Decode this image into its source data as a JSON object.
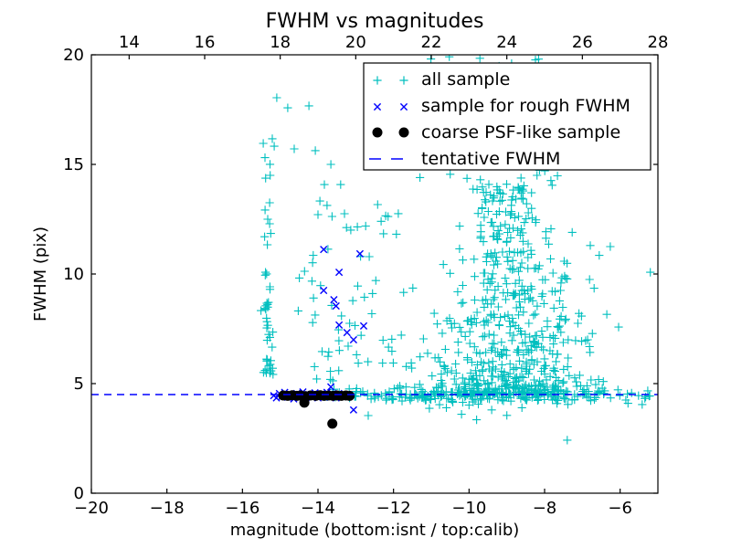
{
  "figure": {
    "background": "#ffffff"
  },
  "chart_data": {
    "type": "scatter",
    "title": "FWHM vs magnitudes",
    "xlabel": "magnitude (bottom:isnt / top:calib)",
    "ylabel": "FWHM (pix)",
    "xlim": [
      -20,
      -5
    ],
    "ylim": [
      0,
      20
    ],
    "bottom_ticks": [
      -20,
      -18,
      -16,
      -14,
      -12,
      -10,
      -8,
      -6
    ],
    "top_ticks": [
      14,
      16,
      18,
      20,
      22,
      24,
      26,
      28
    ],
    "top_axis_offset": 33,
    "y_ticks": [
      0,
      5,
      10,
      15,
      20
    ],
    "tentative_fwhm": 4.5,
    "colors": {
      "all_sample": "#00bfbf",
      "rough_fwhm": "#0000ff",
      "psf_like": "#000000",
      "tentative_line": "#0000ff",
      "axes": "#000000",
      "background": "#ffffff"
    },
    "legend": {
      "position": "upper right",
      "items": [
        {
          "label": "all sample",
          "marker": "plus",
          "color_key": "all_sample"
        },
        {
          "label": "sample for rough FWHM",
          "marker": "x",
          "color_key": "rough_fwhm"
        },
        {
          "label": "coarse PSF-like sample",
          "marker": "dot",
          "color_key": "psf_like"
        },
        {
          "label": "tentative FWHM",
          "marker": "dashed-line",
          "color_key": "tentative_line"
        }
      ]
    },
    "series": {
      "all_sample": {
        "name": "all sample",
        "marker": "plus",
        "seed": 42,
        "explicit_points": [
          [
            -15.09,
            18.04
          ],
          [
            -14.8,
            17.58
          ],
          [
            -14.24,
            17.67
          ],
          [
            -15.21,
            16.17
          ],
          [
            -15.45,
            15.96
          ],
          [
            -15.16,
            15.83
          ],
          [
            -14.63,
            15.71
          ],
          [
            -14.07,
            15.63
          ],
          [
            -13.66,
            15.0
          ],
          [
            -13.83,
            14.08
          ],
          [
            -13.4,
            14.08
          ],
          [
            -13.95,
            13.33
          ],
          [
            -13.76,
            13.13
          ],
          [
            -14.0,
            12.71
          ],
          [
            -15.28,
            13.25
          ],
          [
            -15.4,
            12.92
          ],
          [
            -15.33,
            12.5
          ],
          [
            -15.28,
            12.29
          ],
          [
            -15.2,
            5.7
          ],
          [
            -15.24,
            5.58
          ],
          [
            -15.27,
            5.48
          ],
          [
            -15.19,
            5.42
          ],
          [
            -15.4,
            5.6
          ],
          [
            -11.3,
            14.4
          ],
          [
            -10.5,
            14.55
          ],
          [
            -9.7,
            14.3
          ],
          [
            -8.2,
            14.5
          ],
          [
            -7.8,
            14.05
          ],
          [
            -9.84,
            17.3
          ],
          [
            -9.35,
            17.0
          ],
          [
            -8.9,
            16.6
          ],
          [
            -8.45,
            16.9
          ],
          [
            -7.27,
            11.9
          ],
          [
            -6.79,
            11.3
          ],
          [
            -6.26,
            11.25
          ],
          [
            -7.44,
            9.8
          ],
          [
            -6.81,
            9.75
          ],
          [
            -7.66,
            7.6
          ],
          [
            -6.04,
            7.58
          ],
          [
            -6.86,
            7.0
          ],
          [
            -5.2,
            10.08
          ],
          [
            -12.67,
            3.54
          ],
          [
            -7.4,
            2.42
          ],
          [
            -11.05,
            3.87
          ],
          [
            -10.6,
            3.9
          ],
          [
            -10.2,
            3.6
          ],
          [
            -9.8,
            3.35
          ],
          [
            -9.4,
            3.8
          ],
          [
            -9.0,
            3.55
          ],
          [
            -8.6,
            3.9
          ],
          [
            -10.0,
            4.02
          ]
        ],
        "clusters": [
          {
            "kind": "vstreak",
            "n": 26,
            "x_mean": -15.33,
            "x_sigma": 0.055,
            "y_min": 5.4,
            "y_max": 8.9
          },
          {
            "kind": "vstreak",
            "n": 8,
            "x_mean": -15.31,
            "x_sigma": 0.07,
            "y_min": 9.0,
            "y_max": 12.2
          },
          {
            "kind": "vstreak",
            "n": 4,
            "x_mean": -15.28,
            "x_sigma": 0.1,
            "y_min": 13.8,
            "y_max": 15.5
          },
          {
            "kind": "box",
            "n": 38,
            "x_min": -14.55,
            "x_max": -11.75,
            "y_min": 5.0,
            "y_max": 9.5
          },
          {
            "kind": "box",
            "n": 22,
            "x_min": -14.55,
            "x_max": -11.75,
            "y_min": 9.5,
            "y_max": 13.2
          },
          {
            "kind": "band",
            "n": 30,
            "x_min": -13.85,
            "x_max": -12.3,
            "y_mean": 4.5,
            "y_sigma": 0.13
          },
          {
            "kind": "band",
            "n": 150,
            "x_min": -12.3,
            "x_max": -6.9,
            "y_mean": 4.45,
            "y_sigma": 0.17
          },
          {
            "kind": "band",
            "n": 22,
            "x_min": -6.9,
            "x_max": -5.15,
            "y_mean": 4.42,
            "y_sigma": 0.22
          },
          {
            "kind": "triangle",
            "n": 620,
            "x_mean": -9.0,
            "x_sigma": 1.28,
            "narrowing": 0.66,
            "y_base": 4.5,
            "y_amp": 9.6,
            "y_pow": 2.2,
            "x_min": -12.05,
            "x_max": -6.35
          },
          {
            "kind": "box",
            "n": 14,
            "x_min": -10.45,
            "x_max": -7.45,
            "y_min": 14.2,
            "y_max": 16.3
          },
          {
            "kind": "box",
            "n": 7,
            "x_min": -12.3,
            "x_max": -7.2,
            "y_min": 19.25,
            "y_max": 19.95
          }
        ]
      },
      "rough_fwhm": {
        "name": "sample for rough FWHM",
        "marker": "x",
        "points": [
          [
            -13.85,
            11.12
          ],
          [
            -12.89,
            10.92
          ],
          [
            -13.44,
            10.08
          ],
          [
            -13.85,
            9.25
          ],
          [
            -13.58,
            8.83
          ],
          [
            -13.52,
            8.54
          ],
          [
            -13.44,
            7.67
          ],
          [
            -13.23,
            7.33
          ],
          [
            -13.06,
            7.0
          ],
          [
            -12.79,
            7.63
          ],
          [
            -15.17,
            4.45
          ],
          [
            -15.1,
            4.35
          ],
          [
            -15.02,
            4.55
          ],
          [
            -14.95,
            4.42
          ],
          [
            -14.88,
            4.6
          ],
          [
            -14.8,
            4.38
          ],
          [
            -14.72,
            4.5
          ],
          [
            -14.64,
            4.3
          ],
          [
            -14.56,
            4.55
          ],
          [
            -14.48,
            4.42
          ],
          [
            -14.4,
            4.62
          ],
          [
            -14.32,
            4.35
          ],
          [
            -14.24,
            4.5
          ],
          [
            -14.16,
            4.4
          ],
          [
            -14.08,
            4.58
          ],
          [
            -14.0,
            4.35
          ],
          [
            -13.92,
            4.52
          ],
          [
            -13.84,
            4.42
          ],
          [
            -13.76,
            4.6
          ],
          [
            -13.68,
            4.38
          ],
          [
            -13.6,
            4.5
          ],
          [
            -13.52,
            4.35
          ],
          [
            -13.45,
            4.55
          ],
          [
            -13.4,
            4.45
          ],
          [
            -13.66,
            4.85
          ],
          [
            -13.06,
            3.8
          ]
        ]
      },
      "psf_like": {
        "name": "coarse PSF-like sample",
        "marker": "dot",
        "points": [
          [
            -14.92,
            4.46
          ],
          [
            -14.8,
            4.44
          ],
          [
            -14.68,
            4.47
          ],
          [
            -14.56,
            4.44
          ],
          [
            -14.46,
            4.46
          ],
          [
            -14.34,
            4.43
          ],
          [
            -14.2,
            4.46
          ],
          [
            -14.06,
            4.44
          ],
          [
            -13.94,
            4.47
          ],
          [
            -13.84,
            4.44
          ],
          [
            -13.72,
            4.46
          ],
          [
            -13.6,
            4.44
          ],
          [
            -13.5,
            4.46
          ],
          [
            -13.38,
            4.44
          ],
          [
            -13.26,
            4.46
          ],
          [
            -13.16,
            4.44
          ],
          [
            -14.36,
            4.13
          ],
          [
            -13.62,
            3.17
          ]
        ]
      },
      "tentative": {
        "name": "tentative FWHM",
        "style": "dashed",
        "y": 4.5
      }
    }
  }
}
